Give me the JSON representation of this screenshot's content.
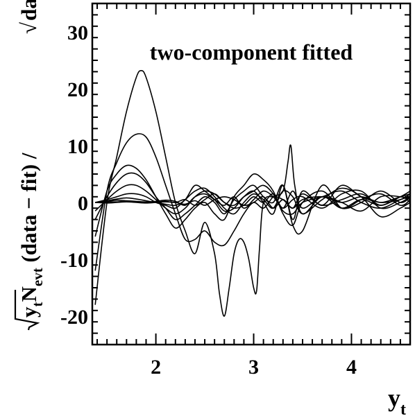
{
  "chart_data": {
    "type": "line",
    "title": "",
    "annotation": "two-component fitted",
    "xlabel": {
      "main": "y",
      "sub": "t"
    },
    "ylabel": {
      "factor_main": "y",
      "factor_sub": "t",
      "n_main": "N",
      "n_sub": "evt",
      "ratio_text": " (data − fit) / ",
      "denominator": "data"
    },
    "xlim": [
      1.35,
      4.6
    ],
    "ylim": [
      -25,
      35
    ],
    "xticks": [
      {
        "value": 2,
        "label": "2"
      },
      {
        "value": 3,
        "label": "3"
      },
      {
        "value": 4,
        "label": "4"
      }
    ],
    "yticks": [
      {
        "value": -20,
        "label": "-20"
      },
      {
        "value": -10,
        "label": "-10"
      },
      {
        "value": 0,
        "label": "0"
      },
      {
        "value": 10,
        "label": "10"
      },
      {
        "value": 20,
        "label": "20"
      },
      {
        "value": 30,
        "label": "30"
      }
    ],
    "grid": false,
    "legend": "none",
    "line_color": "#000000",
    "series": [
      {
        "x": [
          1.38,
          1.5,
          1.6,
          1.7,
          1.8,
          1.85,
          1.9,
          2.0,
          2.1,
          2.2,
          2.3,
          2.4,
          2.5,
          2.6,
          2.65,
          2.7,
          2.75,
          2.8,
          2.85,
          2.9,
          2.95,
          3.0,
          3.03,
          3.06,
          3.1,
          3.2,
          3.3,
          3.4,
          3.5,
          3.7,
          3.9,
          4.1,
          4.3,
          4.5,
          4.6
        ],
        "y": [
          -18,
          0,
          8,
          16,
          22,
          23.2,
          22,
          16,
          8,
          0,
          -5,
          -9,
          -3.5,
          -9,
          -16,
          -20,
          -15,
          -9,
          -6.5,
          -7,
          -10,
          -15,
          -15.5,
          -8,
          0,
          1,
          0.5,
          -1,
          0.5,
          1,
          0,
          1,
          0,
          1,
          1.5
        ]
      },
      {
        "x": [
          1.38,
          1.5,
          1.6,
          1.7,
          1.8,
          1.9,
          2.0,
          2.1,
          2.2,
          2.3,
          2.4,
          2.5,
          2.6,
          2.7,
          2.8,
          2.9,
          3.0,
          3.1,
          3.2,
          3.3,
          3.35,
          3.38,
          3.42,
          3.5,
          3.7,
          3.9,
          4.1,
          4.3,
          4.5,
          4.6
        ],
        "y": [
          -12,
          2,
          7,
          10.5,
          12,
          11.5,
          8,
          3,
          -2,
          -6.5,
          -6.5,
          -5,
          -7,
          -7.5,
          -5,
          -2,
          0,
          -1,
          1,
          2,
          7,
          10,
          3,
          -2,
          1,
          -1,
          0.5,
          -0.5,
          1,
          2
        ]
      },
      {
        "x": [
          1.38,
          1.5,
          1.6,
          1.7,
          1.8,
          1.9,
          2.0,
          2.1,
          2.2,
          2.3,
          2.4,
          2.5,
          2.6,
          2.7,
          2.8,
          2.9,
          3.0,
          3.1,
          3.2,
          3.3,
          3.4,
          3.5,
          3.7,
          3.9,
          4.1,
          4.3,
          4.5,
          4.6
        ],
        "y": [
          -6,
          2,
          5,
          6.5,
          6,
          4,
          1,
          -2,
          -4.5,
          -3,
          -1,
          0,
          -2,
          -3,
          1,
          3,
          5,
          4,
          2,
          -2,
          -4,
          0,
          2,
          -1,
          0,
          2,
          0,
          1
        ]
      },
      {
        "x": [
          1.38,
          1.5,
          1.6,
          1.7,
          1.8,
          1.9,
          2.0,
          2.1,
          2.2,
          2.3,
          2.4,
          2.5,
          2.6,
          2.7,
          2.8,
          2.9,
          3.0,
          3.1,
          3.2,
          3.3,
          3.4,
          3.5,
          3.7,
          3.9,
          4.1,
          4.3,
          4.5,
          4.6
        ],
        "y": [
          -3,
          1,
          3.5,
          5,
          5,
          3.5,
          1,
          -1,
          -3,
          -2,
          -0.5,
          1,
          0,
          -2,
          0.5,
          2,
          3,
          1,
          0,
          3,
          -4,
          -5,
          3,
          -1,
          0.5,
          1.5,
          -0.5,
          0.5
        ]
      },
      {
        "x": [
          1.38,
          1.5,
          1.6,
          1.7,
          1.8,
          1.9,
          2.0,
          2.1,
          2.2,
          2.3,
          2.4,
          2.5,
          2.6,
          2.7,
          2.8,
          2.9,
          3.0,
          3.1,
          3.2,
          3.3,
          3.4,
          3.5,
          3.7,
          3.9,
          4.1,
          4.3,
          4.5,
          4.6
        ],
        "y": [
          -1.5,
          0.5,
          2,
          3,
          3,
          2,
          0.5,
          -1,
          -2,
          -1,
          1,
          2,
          1.5,
          0,
          -0.5,
          1,
          2,
          3,
          1.5,
          -1.5,
          -2,
          0,
          1,
          2,
          0,
          -1,
          0.5,
          1
        ]
      },
      {
        "x": [
          1.38,
          1.5,
          1.6,
          1.7,
          1.8,
          1.9,
          2.0,
          2.1,
          2.2,
          2.3,
          2.4,
          2.5,
          2.6,
          2.7,
          2.8,
          2.9,
          3.0,
          3.1,
          3.2,
          3.3,
          3.4,
          3.5,
          3.7,
          3.9,
          4.1,
          4.3,
          4.5,
          4.6
        ],
        "y": [
          0,
          0.5,
          1,
          1.5,
          1.5,
          1,
          0,
          -0.5,
          -1,
          0.5,
          2,
          2.5,
          1,
          -1,
          -2,
          0,
          1.5,
          0.5,
          -1,
          2,
          1,
          -2,
          0.5,
          2.5,
          1,
          -2.5,
          -1,
          0
        ]
      },
      {
        "x": [
          1.38,
          1.5,
          1.6,
          1.7,
          1.8,
          1.9,
          2.0,
          2.1,
          2.2,
          2.3,
          2.4,
          2.5,
          2.6,
          2.7,
          2.8,
          2.9,
          3.0,
          3.1,
          3.2,
          3.3,
          3.4,
          3.5,
          3.7,
          3.9,
          4.1,
          4.3,
          4.5,
          4.6
        ],
        "y": [
          0,
          0.3,
          0.6,
          0.8,
          0.6,
          0.3,
          0,
          -0.3,
          -0.5,
          0.5,
          3,
          2,
          0.5,
          -1.5,
          -1,
          1,
          2,
          0,
          -2,
          3,
          -3,
          2,
          -0.5,
          3,
          1,
          0,
          0.5,
          1.5
        ]
      },
      {
        "x": [
          1.38,
          1.5,
          1.6,
          1.7,
          1.8,
          1.9,
          2.0,
          2.1,
          2.2,
          2.3,
          2.4,
          2.5,
          2.6,
          2.7,
          2.8,
          2.9,
          3.0,
          3.1,
          3.2,
          3.3,
          3.4,
          3.5,
          3.7,
          3.9,
          4.1,
          4.3,
          4.5,
          4.6
        ],
        "y": [
          0,
          0.2,
          0.4,
          0.3,
          0.2,
          0.1,
          0.2,
          0.4,
          0.2,
          -0.5,
          1,
          1.5,
          0.5,
          -0.5,
          1,
          -1,
          0.5,
          2,
          1,
          -1,
          0.5,
          1,
          -1,
          1.5,
          2,
          -1,
          0,
          1
        ]
      },
      {
        "x": [
          1.38,
          1.5,
          1.6,
          1.7,
          1.8,
          1.9,
          2.0,
          2.1,
          2.2,
          2.3,
          2.4,
          2.5,
          2.6,
          2.7,
          2.8,
          2.9,
          3.0,
          3.1,
          3.2,
          3.3,
          3.4,
          3.5,
          3.7,
          3.9,
          4.1,
          4.3,
          4.5,
          4.6
        ],
        "y": [
          0,
          0.1,
          0.1,
          0.2,
          0.1,
          0,
          0.1,
          0.2,
          0,
          0.5,
          -0.5,
          0.5,
          1.5,
          0,
          -1,
          -0.5,
          1,
          0,
          1.5,
          -1,
          2,
          -1,
          1,
          0,
          -1.5,
          1,
          1,
          0.5
        ]
      },
      {
        "x": [
          1.38,
          1.5,
          1.6,
          1.7,
          1.8,
          1.9,
          2.0,
          2.1,
          2.2,
          2.3,
          2.4,
          2.5,
          2.6,
          2.7,
          2.8,
          2.9,
          3.0,
          3.1,
          3.2,
          3.3,
          3.4,
          3.5,
          3.7,
          3.9,
          4.1,
          4.3,
          4.5,
          4.6
        ],
        "y": [
          0,
          -0.1,
          0,
          0.1,
          0,
          -0.1,
          0,
          0.1,
          0,
          -0.3,
          0.3,
          -0.5,
          0.5,
          1,
          0.5,
          -0.5,
          0,
          1,
          -1,
          0.5,
          -1,
          1.5,
          -0.5,
          0.5,
          1.5,
          -0.5,
          1,
          0
        ]
      }
    ]
  }
}
